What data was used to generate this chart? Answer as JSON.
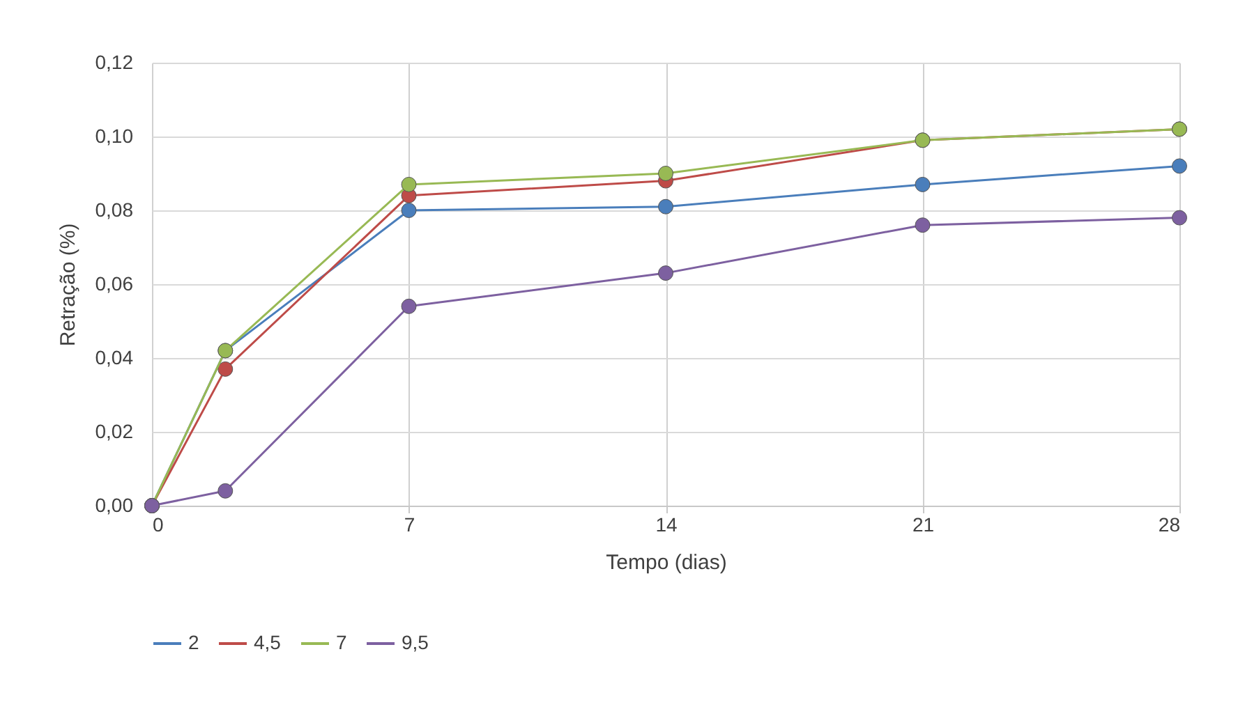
{
  "chart_data": {
    "type": "line",
    "xlabel": "Tempo (dias)",
    "ylabel": "Retração (%)",
    "x": [
      0,
      2,
      7,
      14,
      21,
      28
    ],
    "series": [
      {
        "name": "2",
        "color": "#4a7ebb",
        "values": [
          0,
          0.042,
          0.08,
          0.081,
          0.087,
          0.092
        ]
      },
      {
        "name": "4,5",
        "color": "#be4b48",
        "values": [
          0,
          0.037,
          0.084,
          0.088,
          0.099,
          0.102
        ]
      },
      {
        "name": "7",
        "color": "#98b954",
        "values": [
          0,
          0.042,
          0.087,
          0.09,
          0.099,
          0.102
        ]
      },
      {
        "name": "9,5",
        "color": "#7d60a0",
        "values": [
          0,
          0.004,
          0.054,
          0.063,
          0.076,
          0.078
        ]
      }
    ],
    "xlim": [
      0,
      28
    ],
    "xticks": [
      0,
      7,
      14,
      21,
      28
    ],
    "ylim": [
      0,
      0.12
    ],
    "yticks": [
      {
        "value": 0,
        "label": "0,00"
      },
      {
        "value": 0.02,
        "label": "0,02"
      },
      {
        "value": 0.04,
        "label": "0,04"
      },
      {
        "value": 0.06,
        "label": "0,06"
      },
      {
        "value": 0.08,
        "label": "0,08"
      },
      {
        "value": 0.1,
        "label": "0,10"
      },
      {
        "value": 0.12,
        "label": "0,12"
      }
    ],
    "grid": true,
    "legend": "bottom",
    "marker": "circle",
    "line_style": "solid"
  }
}
